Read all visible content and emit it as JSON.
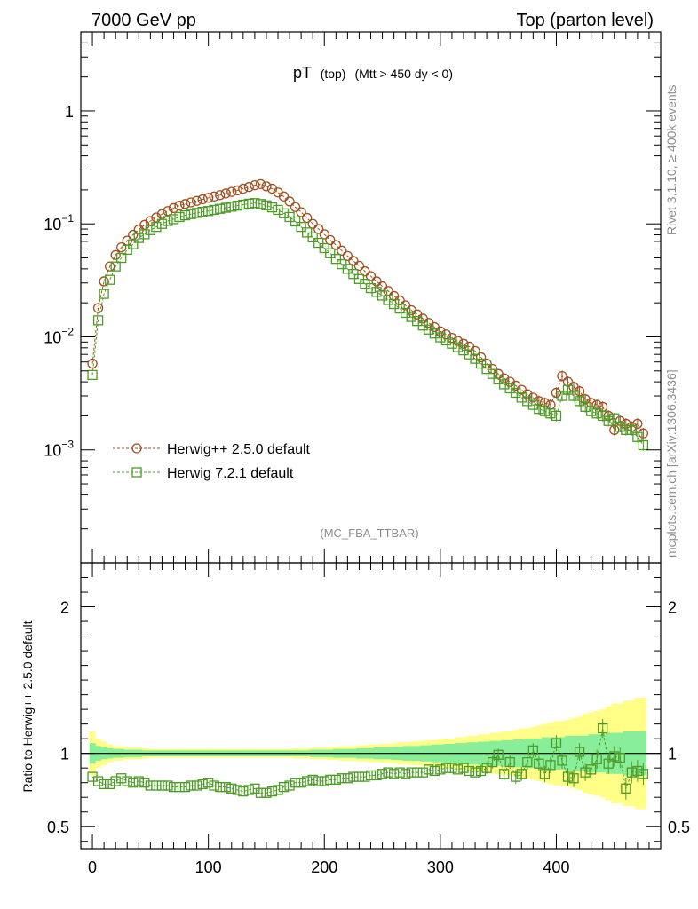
{
  "header": {
    "left": "7000 GeV pp",
    "right": "Top (parton level)"
  },
  "side_labels": {
    "rivet": "Rivet 3.1.10, ≥ 400k events",
    "mcplots": "mcplots.cern.ch [arXiv:1306.3436]"
  },
  "colors": {
    "herwig_pp": "#a0501e",
    "herwig_7": "#4d9b26",
    "band_yellow": "#ffff88",
    "band_green": "#88ee99"
  },
  "chart_data": [
    {
      "panel": "main",
      "type": "scatter",
      "title": "pT",
      "title_sub": "(top)",
      "title_cut": "(Mtt > 450 dy < 0)",
      "watermark": "(MC_FBA_TTBAR)",
      "yscale": "log",
      "xlim": [
        -10,
        490
      ],
      "ylim": [
        0.0001,
        5
      ],
      "yticks": [
        {
          "value": 1,
          "base": "1",
          "exp": ""
        },
        {
          "value": 0.1,
          "base": "10",
          "exp": "−1"
        },
        {
          "value": 0.01,
          "base": "10",
          "exp": "−2"
        },
        {
          "value": 0.001,
          "base": "10",
          "exp": "−3"
        }
      ],
      "x": [
        0,
        5,
        10,
        15,
        20,
        25,
        30,
        35,
        40,
        45,
        50,
        55,
        60,
        65,
        70,
        75,
        80,
        85,
        90,
        95,
        100,
        105,
        110,
        115,
        120,
        125,
        130,
        135,
        140,
        145,
        150,
        155,
        160,
        165,
        170,
        175,
        180,
        185,
        190,
        195,
        200,
        205,
        210,
        215,
        220,
        225,
        230,
        235,
        240,
        245,
        250,
        255,
        260,
        265,
        270,
        275,
        280,
        285,
        290,
        295,
        300,
        305,
        310,
        315,
        320,
        325,
        330,
        335,
        340,
        345,
        350,
        355,
        360,
        365,
        370,
        375,
        380,
        385,
        390,
        395,
        400,
        405,
        410,
        415,
        420,
        425,
        430,
        435,
        440,
        445,
        450,
        455,
        460,
        465,
        470,
        475
      ],
      "legend_position": "bottom-left",
      "series": [
        {
          "name": "Herwig++ 2.5.0 default",
          "marker": "circle",
          "values": [
            0.0058,
            0.018,
            0.031,
            0.042,
            0.053,
            0.062,
            0.071,
            0.08,
            0.089,
            0.098,
            0.106,
            0.114,
            0.122,
            0.13,
            0.138,
            0.145,
            0.15,
            0.155,
            0.16,
            0.165,
            0.17,
            0.175,
            0.18,
            0.186,
            0.192,
            0.198,
            0.205,
            0.212,
            0.22,
            0.225,
            0.215,
            0.205,
            0.19,
            0.175,
            0.158,
            0.141,
            0.127,
            0.113,
            0.1,
            0.09,
            0.081,
            0.072,
            0.065,
            0.058,
            0.052,
            0.047,
            0.0425,
            0.038,
            0.0345,
            0.031,
            0.028,
            0.0255,
            0.023,
            0.021,
            0.019,
            0.0172,
            0.0158,
            0.0145,
            0.0133,
            0.0122,
            0.0112,
            0.0105,
            0.0098,
            0.0092,
            0.0087,
            0.0082,
            0.0075,
            0.0066,
            0.0058,
            0.0052,
            0.0047,
            0.0043,
            0.004,
            0.0037,
            0.0034,
            0.0031,
            0.0029,
            0.0027,
            0.0026,
            0.0025,
            0.0032,
            0.0045,
            0.004,
            0.0036,
            0.0033,
            0.0028,
            0.0026,
            0.0025,
            0.0024,
            0.002,
            0.0015,
            0.0018,
            0.0017,
            0.0016,
            0.0017,
            0.0014
          ]
        },
        {
          "name": "Herwig 7.2.1 default",
          "marker": "square",
          "values": [
            0.0046,
            0.014,
            0.024,
            0.032,
            0.042,
            0.05,
            0.059,
            0.066,
            0.075,
            0.081,
            0.088,
            0.094,
            0.1,
            0.106,
            0.11,
            0.115,
            0.119,
            0.122,
            0.125,
            0.128,
            0.13,
            0.133,
            0.136,
            0.139,
            0.142,
            0.145,
            0.148,
            0.151,
            0.153,
            0.15,
            0.146,
            0.14,
            0.133,
            0.124,
            0.115,
            0.105,
            0.094,
            0.084,
            0.076,
            0.068,
            0.061,
            0.055,
            0.049,
            0.044,
            0.04,
            0.036,
            0.0325,
            0.0295,
            0.027,
            0.025,
            0.0232,
            0.0212,
            0.0195,
            0.0178,
            0.0163,
            0.015,
            0.0138,
            0.0126,
            0.0116,
            0.0107,
            0.0099,
            0.0093,
            0.0087,
            0.0081,
            0.0076,
            0.007,
            0.0064,
            0.0058,
            0.0052,
            0.0047,
            0.0042,
            0.0038,
            0.0035,
            0.0032,
            0.0029,
            0.0027,
            0.0025,
            0.0023,
            0.0022,
            0.0021,
            0.002,
            0.003,
            0.0034,
            0.003,
            0.0027,
            0.0024,
            0.0022,
            0.0021,
            0.002,
            0.0018,
            0.0019,
            0.0016,
            0.0015,
            0.0015,
            0.0013,
            0.0011
          ]
        }
      ]
    },
    {
      "panel": "ratio",
      "type": "line",
      "ylabel": "Ratio to Herwig++ 2.5.0 default",
      "xlim": [
        -10,
        490
      ],
      "ylim": [
        0.35,
        2.3
      ],
      "yticks": [
        0.5,
        1,
        2
      ],
      "ytick_labels": [
        "0.5",
        "1",
        "2"
      ],
      "xticks": [
        0,
        100,
        200,
        300,
        400
      ],
      "xtick_labels": [
        "0",
        "100",
        "200",
        "300",
        "400"
      ],
      "reference_line": 1,
      "ratio_values": [
        0.84,
        0.81,
        0.79,
        0.79,
        0.81,
        0.83,
        0.81,
        0.8,
        0.81,
        0.8,
        0.78,
        0.78,
        0.78,
        0.78,
        0.77,
        0.77,
        0.77,
        0.78,
        0.78,
        0.79,
        0.8,
        0.78,
        0.77,
        0.77,
        0.76,
        0.75,
        0.74,
        0.75,
        0.76,
        0.73,
        0.73,
        0.74,
        0.75,
        0.77,
        0.78,
        0.8,
        0.8,
        0.81,
        0.82,
        0.81,
        0.81,
        0.82,
        0.82,
        0.83,
        0.83,
        0.84,
        0.84,
        0.84,
        0.85,
        0.85,
        0.86,
        0.87,
        0.86,
        0.87,
        0.86,
        0.87,
        0.87,
        0.87,
        0.89,
        0.88,
        0.89,
        0.9,
        0.9,
        0.89,
        0.9,
        0.88,
        0.87,
        0.88,
        0.9,
        0.94,
        0.99,
        0.86,
        0.94,
        0.84,
        0.86,
        0.94,
        1.02,
        0.93,
        0.86,
        0.92,
        1.07,
        0.95,
        0.84,
        0.83,
        1.01,
        0.87,
        0.89,
        0.96,
        1.17,
        0.93,
        0.98,
        0.97,
        0.76,
        0.87,
        0.88,
        0.86
      ],
      "band_green_halfwidth": [
        0.07,
        0.05,
        0.04,
        0.035,
        0.03,
        0.03,
        0.025,
        0.025,
        0.025,
        0.02,
        0.02,
        0.02,
        0.02,
        0.02,
        0.02,
        0.02,
        0.02,
        0.02,
        0.02,
        0.02,
        0.02,
        0.02,
        0.02,
        0.02,
        0.02,
        0.02,
        0.02,
        0.02,
        0.02,
        0.02,
        0.02,
        0.02,
        0.02,
        0.02,
        0.02,
        0.02,
        0.02,
        0.02,
        0.025,
        0.025,
        0.025,
        0.025,
        0.03,
        0.03,
        0.03,
        0.03,
        0.035,
        0.035,
        0.035,
        0.04,
        0.04,
        0.04,
        0.045,
        0.045,
        0.05,
        0.05,
        0.05,
        0.055,
        0.055,
        0.06,
        0.06,
        0.065,
        0.065,
        0.07,
        0.07,
        0.075,
        0.075,
        0.08,
        0.08,
        0.085,
        0.085,
        0.09,
        0.09,
        0.095,
        0.095,
        0.1,
        0.1,
        0.1,
        0.11,
        0.11,
        0.11,
        0.11,
        0.12,
        0.12,
        0.12,
        0.12,
        0.13,
        0.13,
        0.13,
        0.14,
        0.14,
        0.14,
        0.15,
        0.15,
        0.15,
        0.15
      ],
      "band_yellow_halfwidth": [
        0.15,
        0.1,
        0.08,
        0.06,
        0.05,
        0.05,
        0.04,
        0.04,
        0.04,
        0.035,
        0.03,
        0.03,
        0.03,
        0.03,
        0.03,
        0.03,
        0.03,
        0.03,
        0.03,
        0.03,
        0.03,
        0.03,
        0.03,
        0.03,
        0.03,
        0.03,
        0.03,
        0.03,
        0.03,
        0.03,
        0.03,
        0.03,
        0.03,
        0.03,
        0.03,
        0.035,
        0.035,
        0.035,
        0.04,
        0.04,
        0.04,
        0.045,
        0.045,
        0.05,
        0.05,
        0.05,
        0.055,
        0.055,
        0.06,
        0.06,
        0.065,
        0.065,
        0.07,
        0.075,
        0.075,
        0.08,
        0.08,
        0.085,
        0.09,
        0.09,
        0.1,
        0.1,
        0.1,
        0.11,
        0.11,
        0.12,
        0.12,
        0.13,
        0.13,
        0.14,
        0.14,
        0.15,
        0.15,
        0.16,
        0.17,
        0.17,
        0.18,
        0.19,
        0.2,
        0.21,
        0.22,
        0.22,
        0.23,
        0.24,
        0.25,
        0.27,
        0.28,
        0.29,
        0.3,
        0.32,
        0.34,
        0.34,
        0.36,
        0.36,
        0.38,
        0.38
      ]
    }
  ]
}
